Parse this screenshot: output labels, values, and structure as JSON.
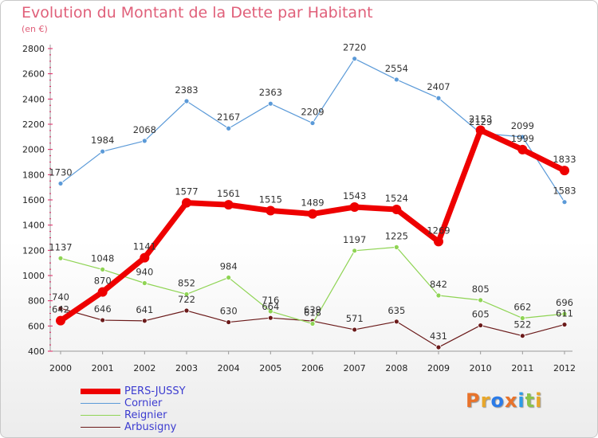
{
  "title": "Evolution du Montant de la Dette par Habitant",
  "subtitle": "(en €)",
  "logo": "Proxiti",
  "colors": {
    "title": "#e0607a",
    "legend_text": "#3c3cd0",
    "axis": "#9a9a9a",
    "axis_ticks": "#e02060",
    "logo_letters": [
      "#e8732b",
      "#e8a72b",
      "#2b7be8",
      "#e8732b",
      "#2b9be8",
      "#8bc34a",
      "#e8a72b"
    ]
  },
  "chart_data": {
    "type": "line",
    "categories": [
      "2000",
      "2001",
      "2002",
      "2003",
      "2004",
      "2005",
      "2006",
      "2007",
      "2008",
      "2009",
      "2010",
      "2011",
      "2012"
    ],
    "ylim": [
      400,
      2800
    ],
    "yticks": [
      400,
      600,
      800,
      1000,
      1200,
      1400,
      1600,
      1800,
      2000,
      2200,
      2400,
      2600,
      2800
    ],
    "grid": false,
    "legend_position": "bottom-left",
    "series": [
      {
        "name": "Arbusigny",
        "color": "#6b1a1a",
        "width": 1.2,
        "values": [
          740,
          646,
          641,
          722,
          630,
          664,
          639,
          571,
          635,
          431,
          605,
          522,
          611
        ]
      },
      {
        "name": "Reignier",
        "color": "#8fd454",
        "width": 1.2,
        "values": [
          1137,
          1048,
          940,
          852,
          984,
          716,
          618,
          1197,
          1225,
          842,
          805,
          662,
          696
        ]
      },
      {
        "name": "Cornier",
        "color": "#5b9ad8",
        "width": 1.2,
        "values": [
          1730,
          1984,
          2068,
          2383,
          2167,
          2363,
          2209,
          2720,
          2554,
          2407,
          2129,
          2099,
          1583
        ]
      },
      {
        "name": "PERS-JUSSY",
        "color": "#ee0000",
        "width": 7,
        "values": [
          642,
          870,
          1141,
          1577,
          1561,
          1515,
          1489,
          1543,
          1524,
          1269,
          2153,
          1999,
          1833
        ]
      }
    ],
    "legend_order": [
      "PERS-JUSSY",
      "Cornier",
      "Reignier",
      "Arbusigny"
    ]
  }
}
